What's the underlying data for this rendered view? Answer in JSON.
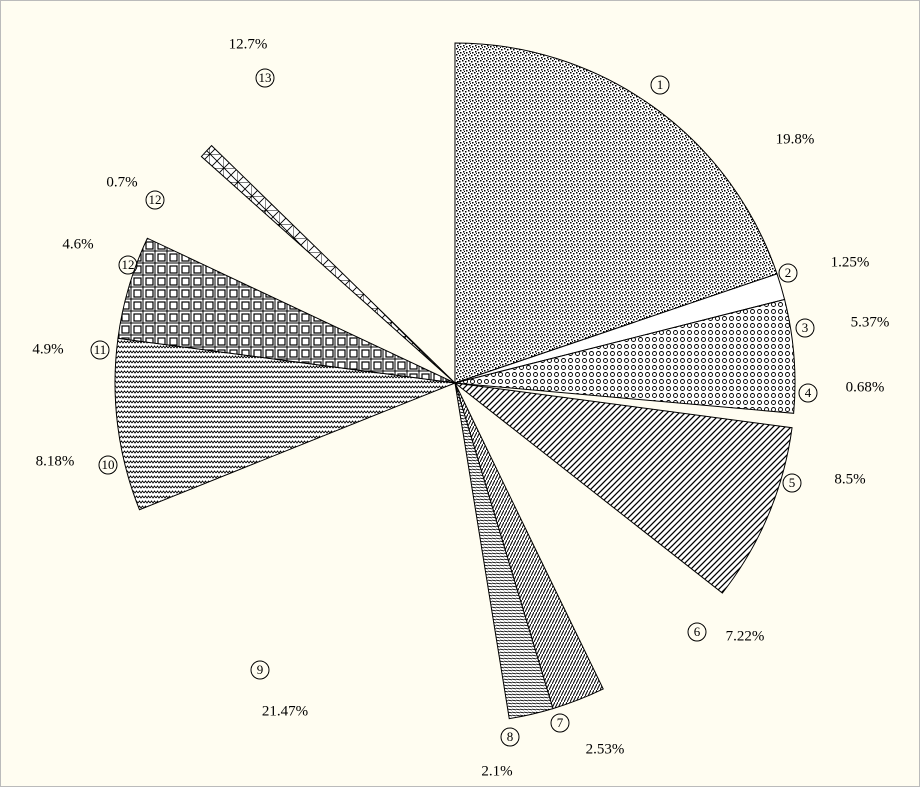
{
  "chart_data": {
    "type": "pie",
    "categories": [
      "1",
      "2",
      "3",
      "4",
      "5",
      "6",
      "7",
      "8",
      "9",
      "10",
      "11",
      "12",
      "12",
      "13"
    ],
    "values": [
      19.8,
      1.25,
      5.37,
      0.68,
      8.5,
      7.22,
      2.53,
      2.1,
      21.47,
      8.18,
      4.9,
      4.6,
      0.7,
      12.7
    ],
    "value_labels": [
      "19.8%",
      "1.25%",
      "5.37%",
      "0.68%",
      "8.5%",
      "7.22%",
      "2.53%",
      "2.1%",
      "21.47%",
      "8.18%",
      "4.9%",
      "4.6%",
      "0.7%",
      "12.7%"
    ],
    "patterns": [
      "stipple",
      "plain",
      "rings",
      null,
      "diagonal",
      null,
      "steep",
      "horizontal",
      null,
      "zigzag",
      "squares",
      null,
      "crosses",
      null
    ],
    "start_angle": "top",
    "direction": "clockwise"
  }
}
